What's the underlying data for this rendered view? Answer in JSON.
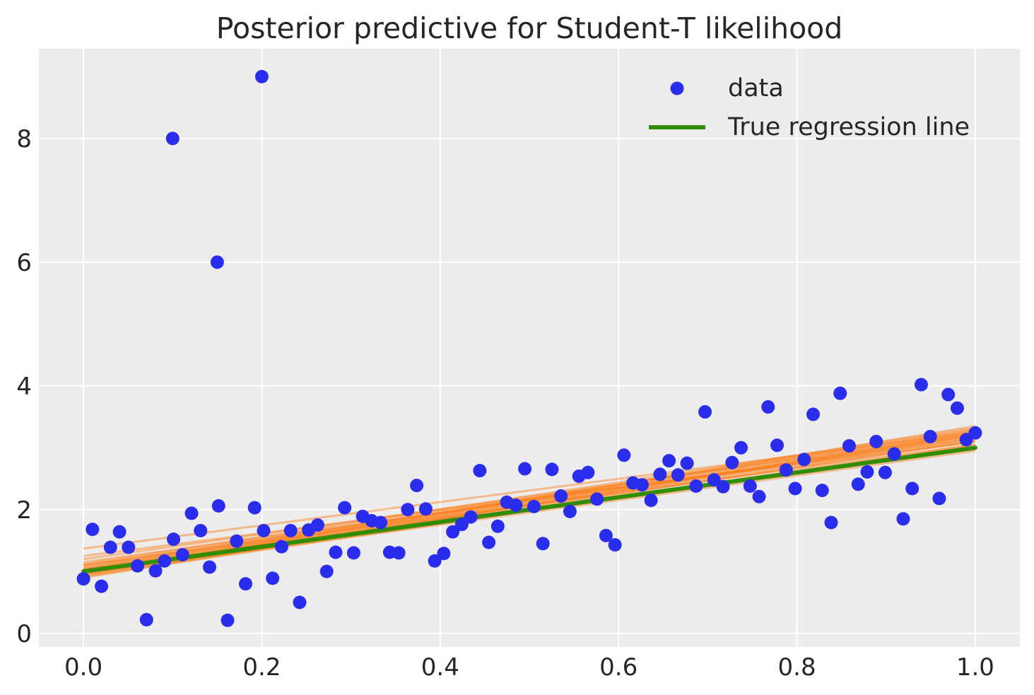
{
  "chart_data": {
    "type": "scatter",
    "title": "Posterior predictive for Student-T likelihood",
    "xlabel": "",
    "ylabel": "",
    "xlim": [
      -0.05,
      1.05
    ],
    "ylim": [
      -0.22,
      9.45
    ],
    "xticks": [
      0.0,
      0.2,
      0.4,
      0.6,
      0.8,
      1.0
    ],
    "xtick_labels": [
      "0.0",
      "0.2",
      "0.4",
      "0.6",
      "0.8",
      "1.0"
    ],
    "yticks": [
      0,
      2,
      4,
      6,
      8
    ],
    "ytick_labels": [
      "0",
      "2",
      "4",
      "6",
      "8"
    ],
    "grid": true,
    "legend_placement": "top-right",
    "colors": {
      "background": "#ececec",
      "grid": "#ffffff",
      "data": "#2a2eec",
      "true_line": "#328c06",
      "posterior": "#fa7c17"
    },
    "legend": [
      {
        "label": "data",
        "kind": "marker"
      },
      {
        "label": "True regression line",
        "kind": "line"
      }
    ],
    "series": [
      {
        "name": "data",
        "kind": "scatter",
        "x": [
          0.0,
          0.0101,
          0.0202,
          0.0303,
          0.0404,
          0.0505,
          0.0606,
          0.0707,
          0.0808,
          0.0909,
          0.101,
          0.1111,
          0.1212,
          0.1313,
          0.1414,
          0.1515,
          0.1616,
          0.1717,
          0.1818,
          0.1919,
          0.202,
          0.2121,
          0.2222,
          0.2323,
          0.2424,
          0.2525,
          0.2626,
          0.2727,
          0.2828,
          0.2929,
          0.303,
          0.3131,
          0.3232,
          0.3333,
          0.3434,
          0.3535,
          0.3636,
          0.3737,
          0.3838,
          0.3939,
          0.404,
          0.4141,
          0.4242,
          0.4343,
          0.4444,
          0.4545,
          0.4646,
          0.4747,
          0.4848,
          0.4949,
          0.5051,
          0.5152,
          0.5253,
          0.5354,
          0.5455,
          0.5556,
          0.5657,
          0.5758,
          0.5859,
          0.596,
          0.6061,
          0.6162,
          0.6263,
          0.6364,
          0.6465,
          0.6566,
          0.6667,
          0.6768,
          0.6869,
          0.697,
          0.7071,
          0.7172,
          0.7273,
          0.7374,
          0.7475,
          0.7576,
          0.7677,
          0.7778,
          0.7879,
          0.798,
          0.8081,
          0.8182,
          0.8283,
          0.8384,
          0.8485,
          0.8586,
          0.8687,
          0.8788,
          0.8889,
          0.899,
          0.9091,
          0.9192,
          0.9293,
          0.9394,
          0.9495,
          0.9596,
          0.9697,
          0.9798,
          0.9899,
          1.0,
          0.1,
          0.15,
          0.2
        ],
        "y": [
          0.88,
          1.68,
          0.76,
          1.39,
          1.64,
          1.39,
          1.09,
          0.22,
          1.01,
          1.17,
          1.52,
          1.27,
          1.94,
          1.66,
          1.07,
          2.06,
          0.21,
          1.49,
          0.8,
          2.03,
          1.66,
          0.89,
          1.4,
          1.66,
          0.5,
          1.67,
          1.75,
          1.0,
          1.31,
          2.03,
          1.3,
          1.89,
          1.82,
          1.79,
          1.31,
          1.3,
          2.0,
          2.39,
          2.01,
          1.17,
          1.29,
          1.64,
          1.76,
          1.88,
          2.63,
          1.47,
          1.73,
          2.12,
          2.07,
          2.66,
          2.05,
          1.45,
          2.65,
          2.22,
          1.97,
          2.54,
          2.6,
          2.17,
          1.58,
          1.43,
          2.88,
          2.43,
          2.4,
          2.15,
          2.57,
          2.79,
          2.56,
          2.75,
          2.38,
          3.58,
          2.48,
          2.37,
          2.76,
          3.0,
          2.38,
          2.21,
          3.66,
          3.04,
          2.64,
          2.34,
          2.81,
          3.54,
          2.31,
          1.79,
          3.88,
          3.03,
          2.41,
          2.61,
          3.1,
          2.6,
          2.9,
          1.85,
          2.34,
          4.02,
          3.18,
          2.18,
          3.86,
          3.64,
          3.13,
          3.24,
          8.0,
          6.0,
          9.0
        ]
      },
      {
        "name": "True regression line",
        "kind": "line",
        "x": [
          0.0,
          1.0
        ],
        "y": [
          1.0,
          3.0
        ]
      }
    ],
    "posterior_lines": [
      [
        0.9,
        3.25
      ],
      [
        0.95,
        3.2
      ],
      [
        1.0,
        3.15
      ],
      [
        1.05,
        3.3
      ],
      [
        1.1,
        3.2
      ],
      [
        0.98,
        3.35
      ],
      [
        1.15,
        3.15
      ],
      [
        0.92,
        3.05
      ],
      [
        1.02,
        3.1
      ],
      [
        1.08,
        3.28
      ],
      [
        1.2,
        3.22
      ],
      [
        0.96,
        2.95
      ],
      [
        1.12,
        3.32
      ],
      [
        1.05,
        3.18
      ],
      [
        1.37,
        3.25
      ],
      [
        1.25,
        3.1
      ],
      [
        0.94,
        3.12
      ],
      [
        1.03,
        3.26
      ],
      [
        1.1,
        3.05
      ],
      [
        1.0,
        3.22
      ]
    ]
  }
}
